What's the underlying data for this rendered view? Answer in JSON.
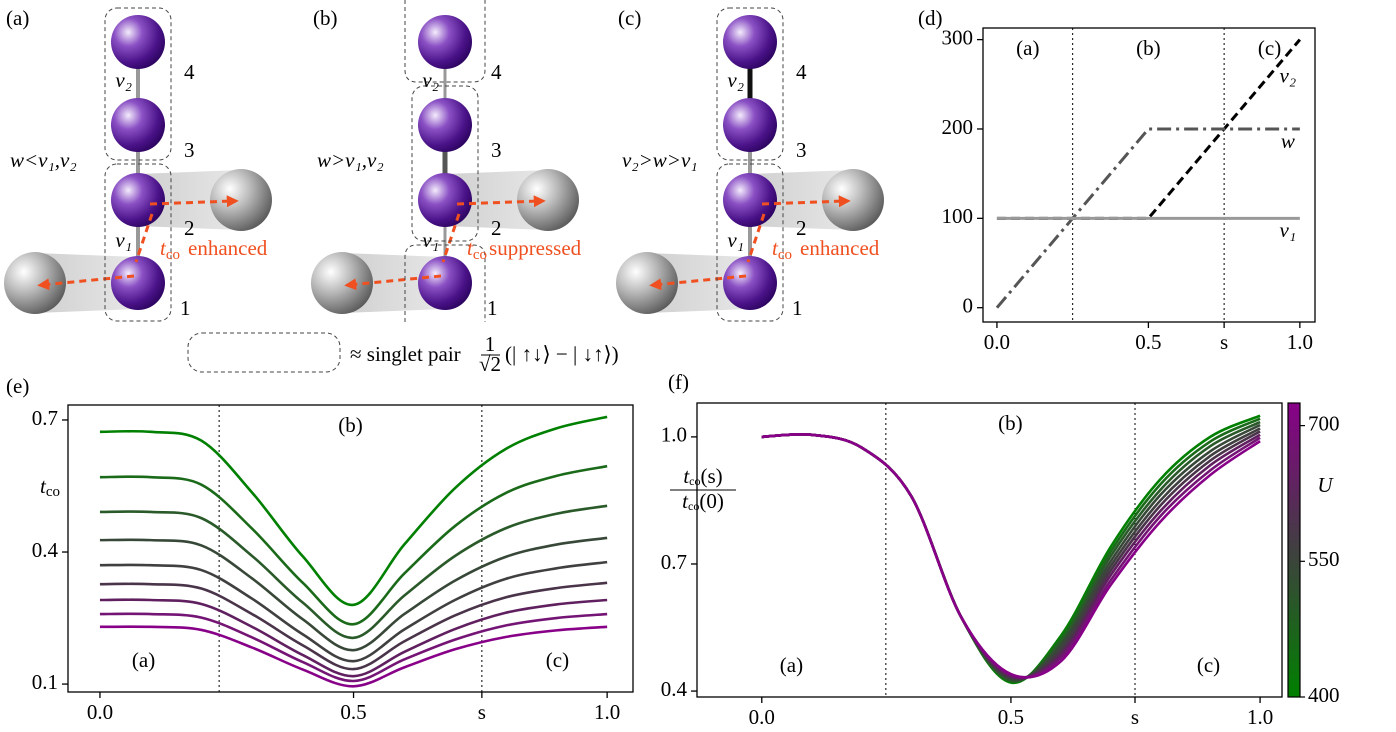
{
  "figure": {
    "diagrams": [
      {
        "label": "(a)",
        "condition": "w<v₁,v₂",
        "v2": "v₂",
        "v1": "v₁",
        "sites": [
          "1",
          "2",
          "3",
          "4"
        ],
        "coupling": {
          "symbol": "t",
          "sub": "co"
        },
        "effect": "enhanced"
      },
      {
        "label": "(b)",
        "condition": "w>v₁,v₂",
        "v2": "v₂",
        "v1": "v₁",
        "sites": [
          "1",
          "2",
          "3",
          "4"
        ],
        "coupling": {
          "symbol": "t",
          "sub": "co"
        },
        "effect": "suppressed"
      },
      {
        "label": "(c)",
        "condition": "v₂>w>v₁",
        "v2": "v₂",
        "v1": "v₁",
        "sites": [
          "1",
          "2",
          "3",
          "4"
        ],
        "coupling": {
          "symbol": "t",
          "sub": "co"
        },
        "effect": "enhanced"
      }
    ],
    "legend": {
      "text": "≈ singlet pair",
      "frac_num": "1",
      "frac_den": "√2",
      "state": "(| ↑↓⟩ − | ↓↑⟩)"
    }
  },
  "chart_data": [
    {
      "type": "line",
      "panel_label": "(d)",
      "curve": "straight",
      "x": [
        0,
        0.25,
        0.5,
        0.75,
        1.0
      ],
      "series": [
        {
          "name": "v₂",
          "color": "#000000",
          "dash": "dashed",
          "values": [
            100,
            100,
            100,
            200,
            300
          ]
        },
        {
          "name": "w",
          "color": "#555555",
          "dash": "dashdot",
          "values": [
            0,
            100,
            200,
            200,
            200
          ]
        },
        {
          "name": "v₁",
          "color": "#999999",
          "dash": "solid",
          "values": [
            100,
            100,
            100,
            100,
            100
          ]
        }
      ],
      "xlim": [
        -0.046,
        1.05
      ],
      "ylim": [
        -16,
        313
      ],
      "xticks": [
        {
          "value": 0,
          "label": "0.0"
        },
        {
          "value": 0.5,
          "label": "0.5"
        },
        {
          "value": 0.75,
          "label": "s"
        },
        {
          "value": 1,
          "label": "1.0"
        }
      ],
      "yticks": [
        0,
        100,
        200,
        300
      ],
      "regions": {
        "boundaries": [
          0.25,
          0.75
        ],
        "labels": [
          "(a)",
          "(b)",
          "(c)"
        ]
      }
    },
    {
      "type": "line",
      "panel_label": "(e)",
      "curve": "smooth",
      "ylabel": {
        "main": "t",
        "sub": "co"
      },
      "x": [
        0,
        0.1,
        0.2,
        0.3,
        0.4,
        0.5,
        0.6,
        0.7,
        0.8,
        0.9,
        1.0
      ],
      "series": [
        {
          "color": "#008000",
          "values": [
            0.673,
            0.673,
            0.653,
            0.535,
            0.39,
            0.28,
            0.417,
            0.545,
            0.634,
            0.681,
            0.707
          ]
        },
        {
          "color": "#1a6a1a",
          "values": [
            0.57,
            0.57,
            0.553,
            0.453,
            0.33,
            0.236,
            0.351,
            0.459,
            0.534,
            0.573,
            0.595
          ]
        },
        {
          "color": "#2a5a2a",
          "values": [
            0.491,
            0.491,
            0.477,
            0.391,
            0.285,
            0.205,
            0.301,
            0.391,
            0.454,
            0.487,
            0.505
          ]
        },
        {
          "color": "#384838",
          "values": [
            0.427,
            0.427,
            0.415,
            0.34,
            0.247,
            0.177,
            0.259,
            0.335,
            0.389,
            0.417,
            0.432
          ]
        },
        {
          "color": "#404040",
          "values": [
            0.37,
            0.37,
            0.359,
            0.294,
            0.213,
            0.152,
            0.224,
            0.291,
            0.339,
            0.363,
            0.377
          ]
        },
        {
          "color": "#4a344a",
          "values": [
            0.327,
            0.327,
            0.317,
            0.259,
            0.188,
            0.134,
            0.197,
            0.256,
            0.297,
            0.318,
            0.33
          ]
        },
        {
          "color": "#602060",
          "values": [
            0.291,
            0.291,
            0.282,
            0.23,
            0.166,
            0.118,
            0.173,
            0.225,
            0.262,
            0.281,
            0.291
          ]
        },
        {
          "color": "#741474",
          "values": [
            0.259,
            0.259,
            0.251,
            0.206,
            0.15,
            0.107,
            0.156,
            0.201,
            0.233,
            0.25,
            0.259
          ]
        },
        {
          "color": "#880088",
          "values": [
            0.23,
            0.23,
            0.223,
            0.183,
            0.133,
            0.095,
            0.138,
            0.179,
            0.207,
            0.222,
            0.23
          ]
        }
      ],
      "xlim": [
        -0.063,
        1.051
      ],
      "ylim": [
        0.082,
        0.734
      ],
      "xticks": [
        {
          "value": 0,
          "label": "0.0"
        },
        {
          "value": 0.5,
          "label": "0.5"
        },
        {
          "value": 0.753,
          "label": "s"
        },
        {
          "value": 1,
          "label": "1.0"
        }
      ],
      "yticks": [
        0.1,
        0.4,
        0.7
      ],
      "regions": {
        "boundaries": [
          0.235,
          0.753
        ],
        "labels": [
          "(a)",
          "(b)",
          "(c)"
        ]
      }
    },
    {
      "type": "line",
      "panel_label": "(f)",
      "curve": "smooth",
      "ylabel": {
        "num": [
          "t",
          "co",
          "(s)"
        ],
        "den": [
          "t",
          "co",
          "(0)"
        ]
      },
      "x": [
        0,
        0.1,
        0.2,
        0.3,
        0.4,
        0.5,
        0.6,
        0.7,
        0.8,
        0.9,
        1.0
      ],
      "series": [
        {
          "color": "#008000",
          "values": [
            1.0,
            1.005,
            0.975,
            0.86,
            0.575,
            0.42,
            0.53,
            0.74,
            0.9,
            1.0,
            1.05
          ]
        },
        {
          "color": "#1a6a1a",
          "values": [
            1.0,
            1.005,
            0.975,
            0.86,
            0.575,
            0.423,
            0.523,
            0.729,
            0.888,
            0.989,
            1.043
          ]
        },
        {
          "color": "#2a5a2a",
          "values": [
            1.0,
            1.005,
            0.975,
            0.86,
            0.575,
            0.425,
            0.515,
            0.718,
            0.875,
            0.978,
            1.035
          ]
        },
        {
          "color": "#384838",
          "values": [
            1.0,
            1.005,
            0.975,
            0.86,
            0.575,
            0.428,
            0.508,
            0.706,
            0.863,
            0.966,
            1.028
          ]
        },
        {
          "color": "#404040",
          "values": [
            1.0,
            1.005,
            0.975,
            0.86,
            0.575,
            0.43,
            0.5,
            0.695,
            0.85,
            0.955,
            1.02
          ]
        },
        {
          "color": "#4a344a",
          "values": [
            1.0,
            1.005,
            0.975,
            0.86,
            0.575,
            0.433,
            0.493,
            0.684,
            0.838,
            0.944,
            1.013
          ]
        },
        {
          "color": "#602060",
          "values": [
            1.0,
            1.005,
            0.975,
            0.86,
            0.575,
            0.435,
            0.485,
            0.673,
            0.825,
            0.933,
            1.005
          ]
        },
        {
          "color": "#741474",
          "values": [
            1.0,
            1.005,
            0.975,
            0.86,
            0.575,
            0.438,
            0.478,
            0.661,
            0.813,
            0.921,
            0.998
          ]
        },
        {
          "color": "#880088",
          "values": [
            1.0,
            1.005,
            0.975,
            0.86,
            0.575,
            0.44,
            0.47,
            0.65,
            0.8,
            0.91,
            0.99
          ]
        }
      ],
      "xlim": [
        -0.13,
        1.044
      ],
      "ylim": [
        0.386,
        1.08
      ],
      "xticks": [
        {
          "value": 0,
          "label": "0.0"
        },
        {
          "value": 0.5,
          "label": "0.5"
        },
        {
          "value": 0.749,
          "label": "s"
        },
        {
          "value": 1,
          "label": "1.0"
        }
      ],
      "yticks": [
        {
          "value": 1,
          "label": "1.0"
        },
        0.7,
        0.4
      ],
      "regions": {
        "boundaries": [
          0.249,
          0.749
        ],
        "labels": [
          "(a)",
          "(b)",
          "(c)"
        ]
      },
      "colorbar": {
        "label": "U",
        "lim": [
          400,
          725
        ],
        "ticks": [
          400,
          550,
          700
        ],
        "colors": [
          "#008000",
          "#404040",
          "#880088"
        ]
      }
    }
  ]
}
